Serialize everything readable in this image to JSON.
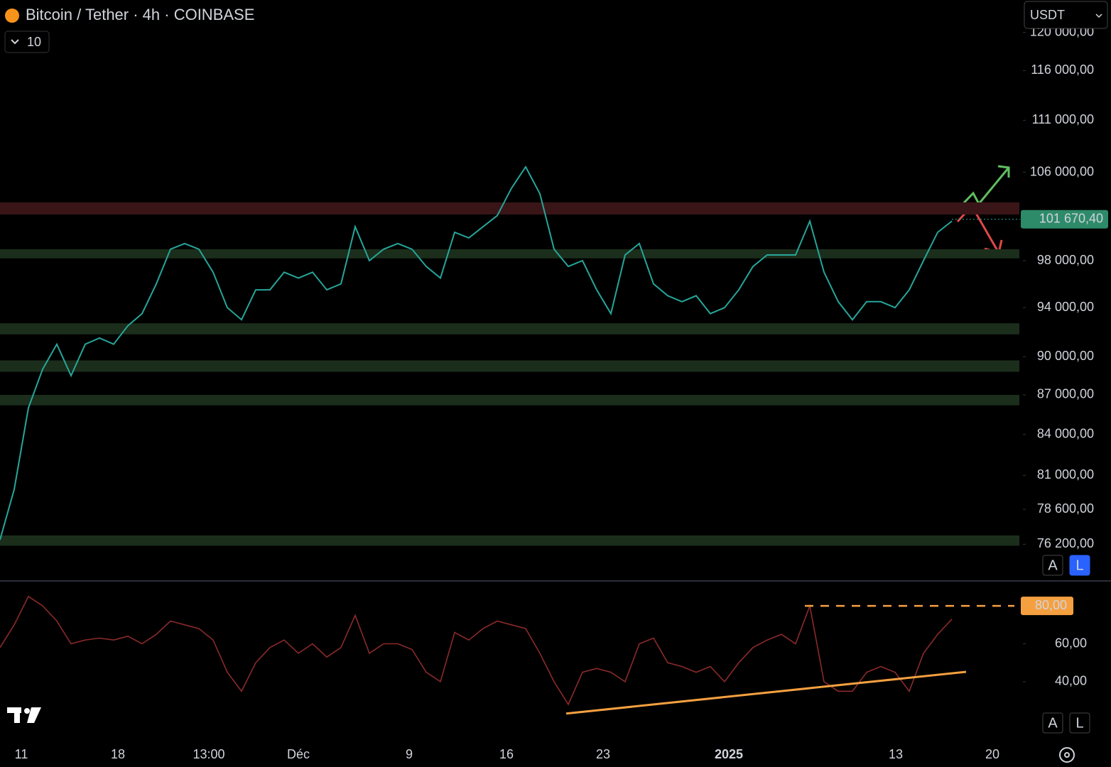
{
  "header": {
    "title": "Bitcoin / Tether · 4h · COINBASE",
    "indicator_count": "10",
    "currency": "USDT"
  },
  "chart_data": [
    {
      "type": "line",
      "log_scale": true,
      "color": "#26a69a",
      "ylim": [
        73900,
        123500
      ],
      "yticks": [
        {
          "value": 120000,
          "label": "120 000,00"
        },
        {
          "value": 116000,
          "label": "116 000,00"
        },
        {
          "value": 111000,
          "label": "111 000,00"
        },
        {
          "value": 106000,
          "label": "106 000,00"
        },
        {
          "value": 98000,
          "label": "98 000,00"
        },
        {
          "value": 94000,
          "label": "94 000,00"
        },
        {
          "value": 90000,
          "label": "90 000,00"
        },
        {
          "value": 87000,
          "label": "87 000,00"
        },
        {
          "value": 84000,
          "label": "84 000,00"
        },
        {
          "value": 81000,
          "label": "81 000,00"
        },
        {
          "value": 78600,
          "label": "78 600,00"
        },
        {
          "value": 76200,
          "label": "76 200,00"
        }
      ],
      "values": [
        76500,
        80000,
        86000,
        89000,
        91000,
        88500,
        91000,
        91500,
        91000,
        92500,
        93500,
        96000,
        99000,
        99500,
        99000,
        97000,
        94000,
        93000,
        95500,
        95500,
        97000,
        96500,
        97000,
        95500,
        96000,
        101000,
        98000,
        99000,
        99500,
        99000,
        97500,
        96500,
        100500,
        100000,
        101000,
        102000,
        104500,
        106500,
        104000,
        99000,
        97500,
        98000,
        95500,
        93500,
        98500,
        99500,
        96000,
        95000,
        94500,
        95000,
        93500,
        94000,
        95500,
        97500,
        98500,
        98500,
        98500,
        101500,
        97000,
        94500,
        93000,
        94500,
        94500,
        94000,
        95500,
        98000,
        100500,
        101500
      ],
      "last_price": {
        "value": 101670.4,
        "label": "101 670,40"
      },
      "zones": [
        {
          "color": "#3a1518",
          "range": [
            102100,
            103200
          ]
        },
        {
          "color": "#1b2e1b",
          "range": [
            98200,
            99000
          ]
        },
        {
          "color": "#1b2e1b",
          "range": [
            91800,
            92700
          ]
        },
        {
          "color": "#1b2e1b",
          "range": [
            88800,
            89700
          ]
        },
        {
          "color": "#1b2e1b",
          "range": [
            86200,
            87000
          ]
        },
        {
          "color": "#1b2e1b",
          "range": [
            76100,
            76800
          ]
        }
      ]
    },
    {
      "type": "line",
      "color": "#8b2a2a",
      "ylim": [
        10,
        92.4
      ],
      "yticks": [
        {
          "value": 60,
          "label": "60,00"
        },
        {
          "value": 40,
          "label": "40,00"
        }
      ],
      "values": [
        58,
        70,
        85,
        80,
        72,
        60,
        62,
        63,
        62,
        64,
        60,
        65,
        72,
        70,
        68,
        62,
        45,
        35,
        50,
        58,
        62,
        55,
        60,
        53,
        58,
        75,
        55,
        60,
        60,
        57,
        45,
        40,
        66,
        62,
        68,
        72,
        70,
        68,
        55,
        40,
        28,
        45,
        47,
        45,
        40,
        60,
        63,
        50,
        48,
        45,
        48,
        40,
        50,
        58,
        62,
        65,
        60,
        80,
        40,
        35,
        35,
        45,
        48,
        45,
        35,
        55,
        65,
        73
      ],
      "level": {
        "value": 80,
        "label": "80,00"
      },
      "trendline": [
        23.2,
        45.2
      ]
    }
  ],
  "time_axis": [
    "11",
    "18",
    "13:00",
    "Déc",
    "9",
    "16",
    "23",
    "2025",
    "13",
    "20"
  ],
  "scale_buttons": [
    "A",
    "L",
    "A",
    "L"
  ]
}
